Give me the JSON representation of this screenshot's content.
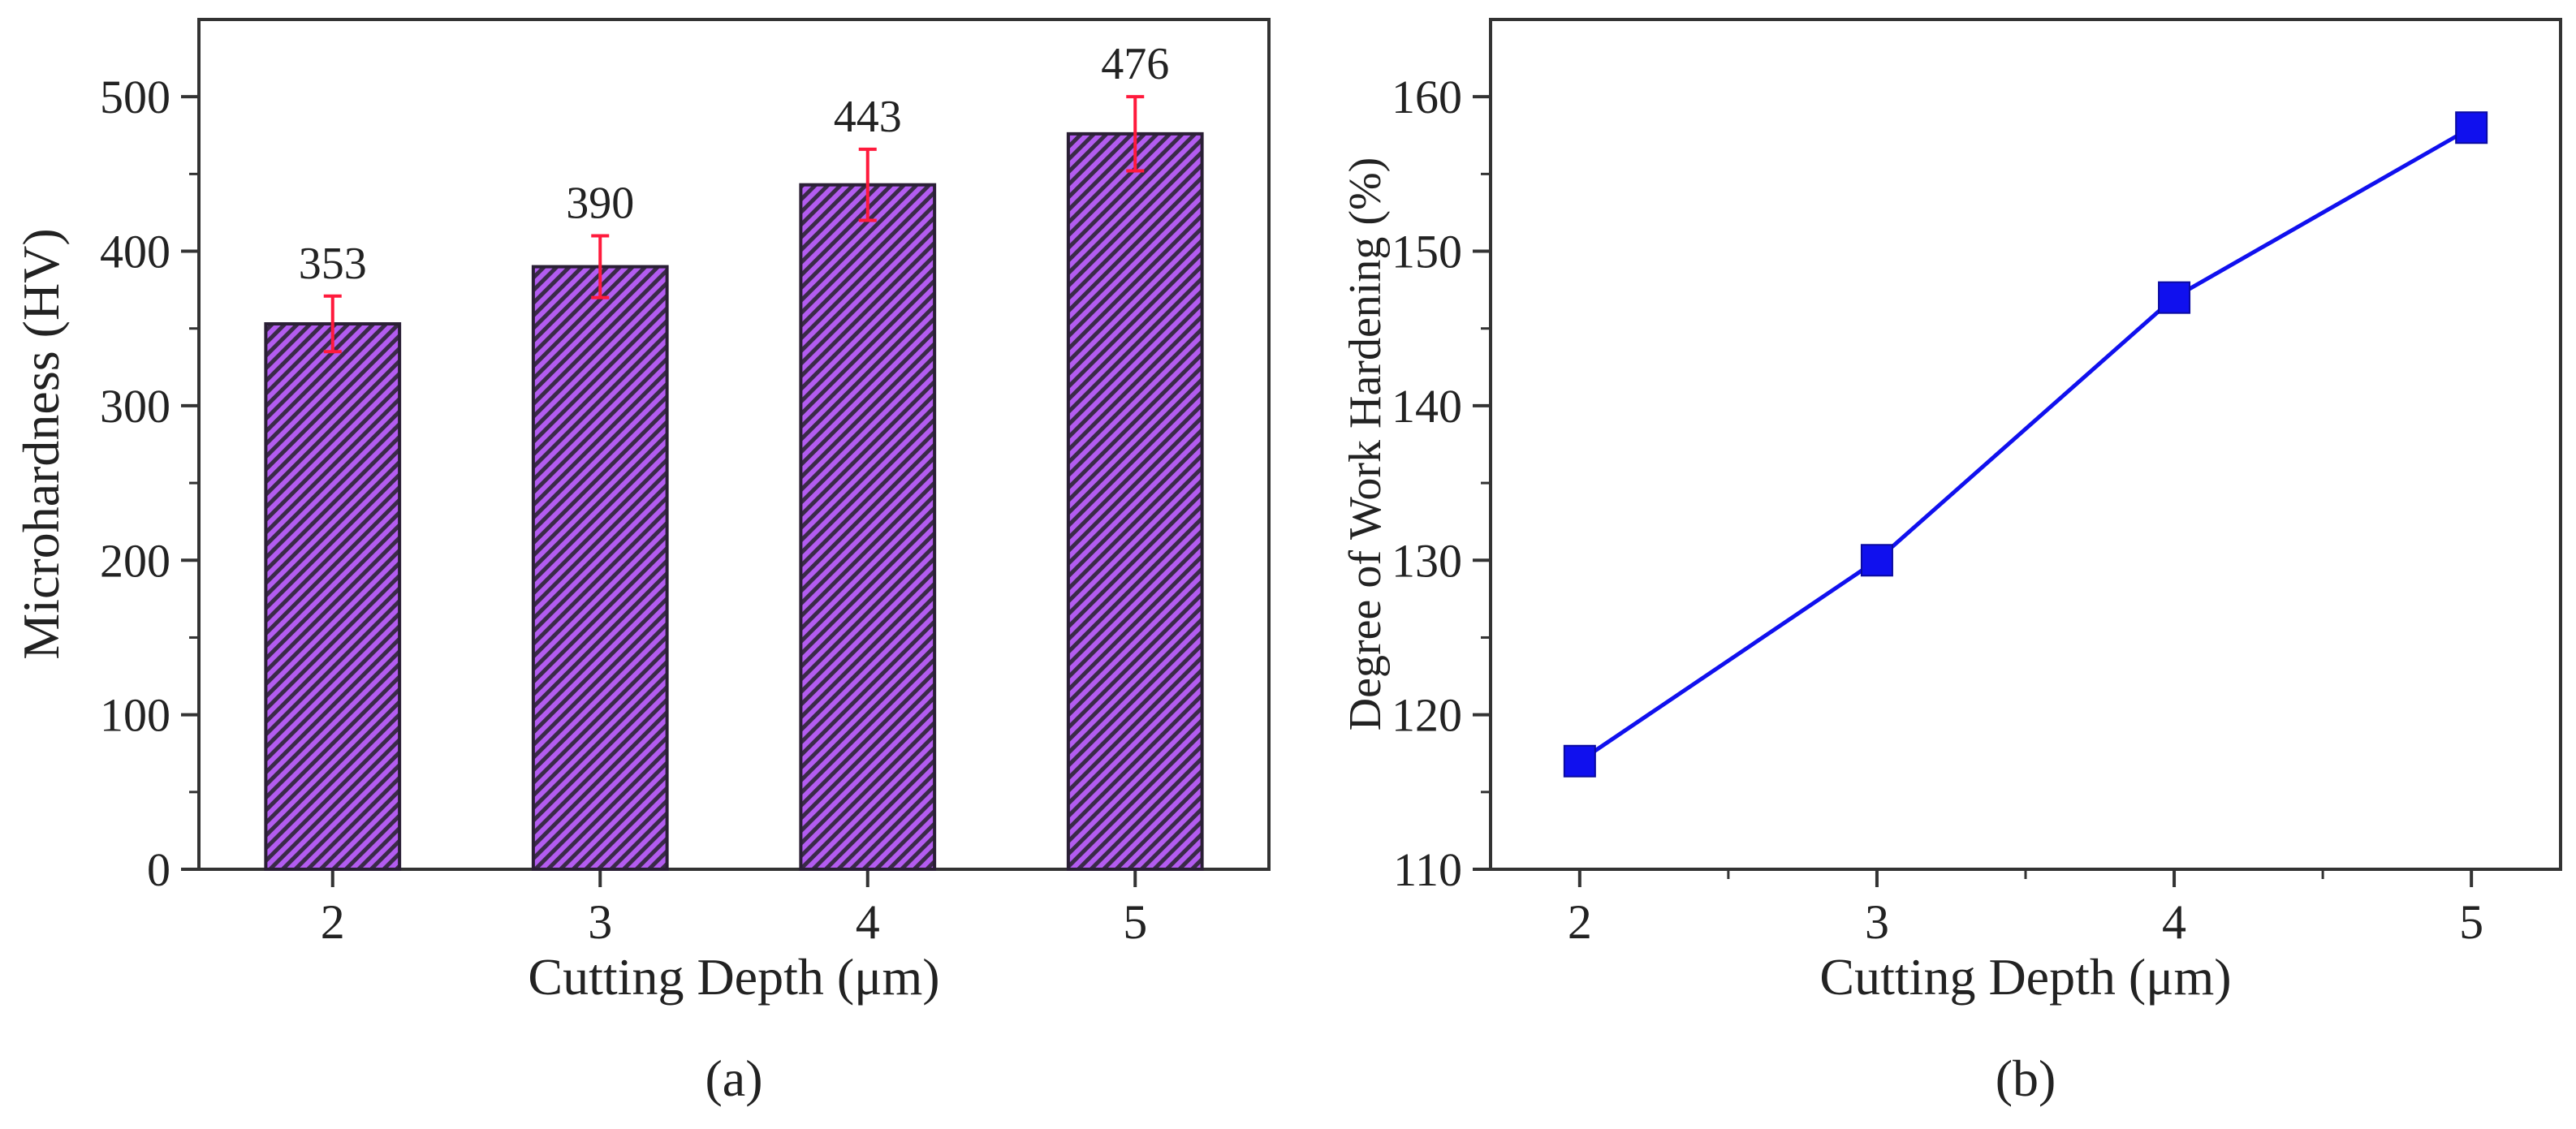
{
  "chart_data": [
    {
      "type": "bar",
      "panel_label": "(a)",
      "categories": [
        "2",
        "3",
        "4",
        "5"
      ],
      "values": [
        353,
        390,
        443,
        476
      ],
      "data_labels": [
        "353",
        "390",
        "443",
        "476"
      ],
      "error": [
        18,
        20,
        23,
        24
      ],
      "xlabel": "Cutting Depth  (μm)",
      "ylabel": "Microhardness (HV)",
      "ylim": [
        0,
        550
      ],
      "yticks": [
        0,
        100,
        200,
        300,
        400,
        500
      ],
      "ytick_labels": [
        "0",
        "100",
        "200",
        "300",
        "400",
        "500"
      ],
      "colors": {
        "bar_fill": "#b35cf0",
        "bar_stripe": "#3a2a48",
        "bar_stroke": "#2a1f35",
        "error_bar": "#ff1a3c"
      }
    },
    {
      "type": "line",
      "panel_label": "(b)",
      "x": [
        2,
        3,
        4,
        5
      ],
      "xtick_labels": [
        "2",
        "3",
        "4",
        "5"
      ],
      "values": [
        117,
        130,
        147,
        158
      ],
      "xlabel": "Cutting Depth  (μm)",
      "ylabel": "Degree of Work Hardening (%)",
      "ylim": [
        110,
        165
      ],
      "yticks": [
        110,
        120,
        130,
        140,
        150,
        160
      ],
      "ytick_labels": [
        "110",
        "120",
        "130",
        "140",
        "150",
        "160"
      ],
      "colors": {
        "line": "#1010ee",
        "marker": "#1010ee"
      }
    }
  ]
}
